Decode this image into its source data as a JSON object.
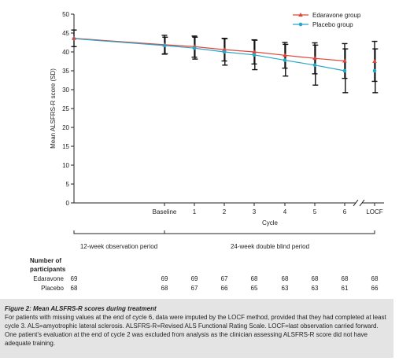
{
  "chart_data": {
    "type": "line",
    "xlabel": "Cycle",
    "ylabel": "Mean ALSFRS-R score (SD)",
    "ylim": [
      0,
      50
    ],
    "yticks": [
      0,
      5,
      10,
      15,
      20,
      25,
      30,
      35,
      40,
      45,
      50
    ],
    "categories": [
      "Baseline",
      "1",
      "2",
      "3",
      "4",
      "5",
      "6",
      "LOCF"
    ],
    "legend_position": "top-right",
    "series": [
      {
        "name": "Edaravone group",
        "color": "#e0453a",
        "marker": "triangle",
        "values": [
          41.9,
          41.4,
          40.6,
          40.0,
          39.1,
          38.3,
          37.6,
          37.5
        ],
        "sd": [
          2.5,
          2.8,
          3.0,
          3.2,
          3.4,
          4.1,
          4.6,
          5.3
        ]
      },
      {
        "name": "Placebo group",
        "color": "#26a6c9",
        "marker": "circle",
        "values": [
          41.7,
          41.0,
          40.0,
          39.2,
          37.8,
          36.5,
          35.0,
          35.0
        ],
        "sd": [
          2.2,
          2.9,
          3.5,
          3.9,
          4.2,
          5.3,
          5.8,
          5.8
        ]
      }
    ],
    "pre_baseline": {
      "x_label": "",
      "values": [
        43.6,
        43.5
      ],
      "sd": [
        2.2,
        2.2
      ]
    },
    "period_labels": [
      "12-week observation period",
      "24-week double blind period"
    ],
    "participants": {
      "header": "Number of participants",
      "rows": [
        {
          "label": "Edaravone",
          "values": [
            "69",
            "69",
            "69",
            "67",
            "68",
            "68",
            "68",
            "68",
            "68"
          ]
        },
        {
          "label": "Placebo",
          "values": [
            "68",
            "68",
            "67",
            "66",
            "65",
            "63",
            "63",
            "61",
            "66"
          ]
        }
      ]
    }
  },
  "caption": {
    "title": "Figure 2: Mean ALSFRS-R scores during treatment",
    "body": "For patients with missing values at the end of cycle 6, data were imputed by the LOCF method, provided that they had completed at least cycle 3. ALS=amyotrophic lateral sclerosis. ALSFRS-R=Revised ALS Functional Rating Scale. LOCF=last observation carried forward. One patient’s evaluation at the end of cycle 2 was excluded from analysis as the clinician assessing ALSFRS-R score did not have adequate training."
  }
}
